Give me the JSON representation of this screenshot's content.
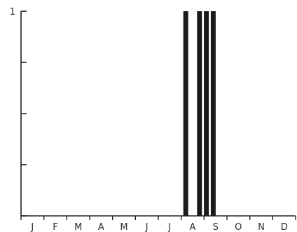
{
  "chart_data": {
    "type": "bar",
    "title": "",
    "xlabel": "",
    "ylabel": "",
    "ylim": [
      0,
      1
    ],
    "y_ticks": [
      0,
      0.25,
      0.5,
      0.75,
      1
    ],
    "y_tick_labels": [
      {
        "value": 1,
        "label": "1"
      }
    ],
    "categories": [
      "J",
      "F",
      "M",
      "A",
      "M",
      "J",
      "J",
      "A",
      "S",
      "O",
      "N",
      "D"
    ],
    "x_range": [
      0,
      12
    ],
    "bars": [
      {
        "x": 7.2,
        "value": 1
      },
      {
        "x": 7.8,
        "value": 1
      },
      {
        "x": 8.1,
        "value": 1
      },
      {
        "x": 8.4,
        "value": 1
      }
    ],
    "grid": false,
    "colors": {
      "bar": "#1a1a1a",
      "axis": "#222222",
      "text": "#2a2a2a"
    }
  }
}
